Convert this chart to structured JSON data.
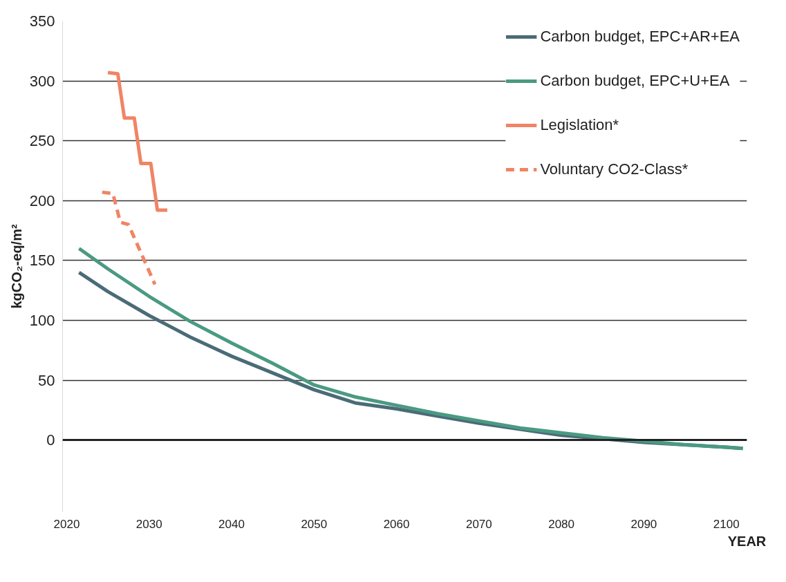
{
  "chart_data": {
    "type": "line",
    "ylabel": "kgCO₂-eq/m²",
    "xlabel": "YEAR",
    "xlim": [
      2019.5,
      2102.5
    ],
    "xticks": [
      2020,
      2030,
      2040,
      2050,
      2060,
      2070,
      2080,
      2090,
      2100
    ],
    "ylim": [
      -60,
      350
    ],
    "yticks": [
      0,
      50,
      100,
      150,
      200,
      250,
      300,
      350
    ],
    "grid": "y",
    "legend": "top right",
    "line_style": "solid",
    "ref_lines": [
      {
        "axis": "y",
        "value": 0,
        "color": "#222222"
      }
    ],
    "series": [
      {
        "name": "Carbon budget, EPC+AR+EA",
        "color": "#4a6b78",
        "x": [
          2021.5,
          2025,
          2030,
          2035,
          2040,
          2045,
          2050,
          2055,
          2060,
          2065,
          2070,
          2075,
          2080,
          2085,
          2090,
          2095,
          2100,
          2102
        ],
        "values": [
          140,
          124,
          104,
          86,
          70,
          56,
          42,
          31,
          26,
          20,
          14,
          9,
          4,
          1,
          -2,
          -4,
          -6,
          -7
        ]
      },
      {
        "name": "Carbon budget, EPC+U+EA",
        "color": "#4a9a82",
        "x": [
          2021.5,
          2025,
          2030,
          2035,
          2040,
          2045,
          2050,
          2055,
          2060,
          2065,
          2070,
          2075,
          2080,
          2085,
          2090,
          2095,
          2100,
          2102
        ],
        "values": [
          160,
          143,
          120,
          99,
          81,
          64,
          46,
          36,
          29,
          22,
          16,
          10,
          6,
          2,
          -1,
          -4,
          -6,
          -7
        ]
      },
      {
        "name": "Legislation*",
        "color": "#f08465",
        "x": [
          2025,
          2026.2,
          2027,
          2028.2,
          2029,
          2030.2,
          2031,
          2032.2
        ],
        "values": [
          307,
          306,
          269,
          269,
          231,
          231,
          192,
          192
        ]
      },
      {
        "name": "Voluntary CO2-Class*",
        "color": "#f08465",
        "line_style": "dashed",
        "x": [
          2024.3,
          2025.6,
          2026.5,
          2027.5,
          2030.7
        ],
        "values": [
          207,
          206,
          182,
          180,
          130
        ]
      }
    ]
  }
}
